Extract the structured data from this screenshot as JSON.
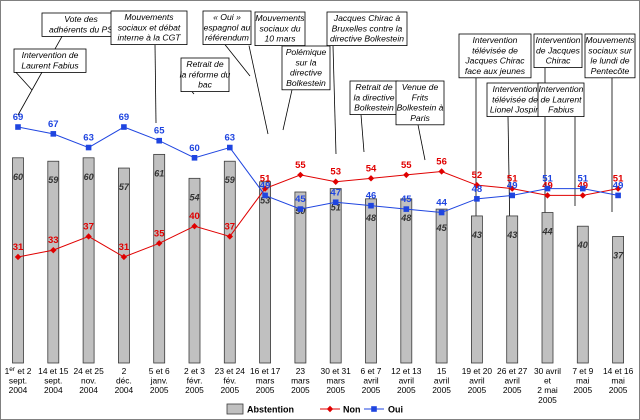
{
  "chart_data": {
    "type": "bar",
    "x": [
      [
        "1er et 2",
        "sept.",
        "2004"
      ],
      [
        "14 et 15",
        "sept.",
        "2004"
      ],
      [
        "24 et 25",
        "nov.",
        "2004"
      ],
      [
        "2",
        "déc.",
        "2004"
      ],
      [
        "5 et 6",
        "janv.",
        "2005"
      ],
      [
        "2 et 3",
        "févr.",
        "2005"
      ],
      [
        "23 et 24",
        "fév.",
        "2005"
      ],
      [
        "16 et 17",
        "mars",
        "2005"
      ],
      [
        "23",
        "mars",
        "2005"
      ],
      [
        "30 et 31",
        "mars",
        "2005"
      ],
      [
        "6 et 7",
        "avril",
        "2005"
      ],
      [
        "12 et 13",
        "avril",
        "2005"
      ],
      [
        "15",
        "avril",
        "2005"
      ],
      [
        "19 et 20",
        "avril",
        "2005"
      ],
      [
        "26 et 27",
        "avril",
        "2005"
      ],
      [
        "30 avril",
        "et",
        "2 mai",
        "2005"
      ],
      [
        "7 et 9",
        "mai",
        "2005"
      ],
      [
        "14 et 16",
        "mai",
        "2005"
      ]
    ],
    "series": [
      {
        "name": "Abstention",
        "kind": "bar",
        "color": "#c0c0c0",
        "values": [
          60,
          59,
          60,
          57,
          61,
          54,
          59,
          53,
          50,
          51,
          48,
          48,
          45,
          43,
          43,
          44,
          40,
          37
        ]
      },
      {
        "name": "Non",
        "kind": "line",
        "color": "#e00000",
        "values": [
          31,
          33,
          37,
          31,
          35,
          40,
          37,
          51,
          55,
          53,
          54,
          55,
          56,
          52,
          51,
          49,
          49,
          51
        ]
      },
      {
        "name": "Oui",
        "kind": "line",
        "color": "#1f45e0",
        "values": [
          69,
          67,
          63,
          69,
          65,
          60,
          63,
          49,
          45,
          47,
          46,
          45,
          44,
          48,
          49,
          51,
          51,
          49
        ]
      }
    ],
    "annotations": [
      {
        "lines": [
          "Intervention de",
          "Laurent Fabius"
        ],
        "index": 0
      },
      {
        "lines": [
          "Vote des",
          "adhérents du PS"
        ],
        "index": 1
      },
      {
        "lines": [
          "Mouvements",
          "sociaux et débat",
          "interne à la CGT"
        ],
        "index": 4
      },
      {
        "lines": [
          "Retrait de",
          "la réforme du",
          "bac"
        ],
        "index": 5
      },
      {
        "lines": [
          "« Oui »",
          "espagnol au",
          "référendum"
        ],
        "index": 6
      },
      {
        "lines": [
          "Mouvements",
          "sociaux du",
          "10 mars"
        ],
        "index": 7
      },
      {
        "lines": [
          "Polémique",
          "sur la",
          "directive",
          "Bolkestein"
        ],
        "index": 8
      },
      {
        "lines": [
          "Jacques Chirac à",
          "Bruxelles contre la",
          "directive Bolkestein"
        ],
        "index": 9
      },
      {
        "lines": [
          "Retrait de",
          "la directive",
          "Bolkestein"
        ],
        "index": 10
      },
      {
        "lines": [
          "Venue de",
          "Frits",
          "Bolkestein à",
          "Paris"
        ],
        "index": 11
      },
      {
        "lines": [
          "Intervention",
          "télévisée de",
          "Jacques Chirac",
          "face aux jeunes"
        ],
        "index": 13
      },
      {
        "lines": [
          "Intervention",
          "télévisée de",
          "Lionel Jospin"
        ],
        "index": 14
      },
      {
        "lines": [
          "Intervention",
          "de Jacques",
          "Chirac"
        ],
        "index": 15
      },
      {
        "lines": [
          "Intervention",
          "de Laurent",
          "Fabius"
        ],
        "index": 16
      },
      {
        "lines": [
          "Mouvements",
          "sociaux sur",
          "le lundi de",
          "Pentecôte"
        ],
        "index": 17
      }
    ],
    "ylim": [
      0,
      75
    ],
    "grid": false,
    "legend": "bottom-center"
  }
}
